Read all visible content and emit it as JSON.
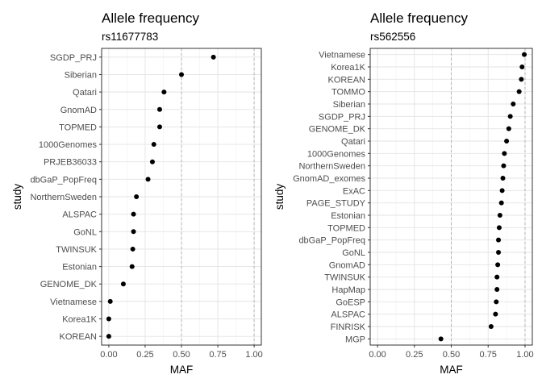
{
  "chart_data": [
    {
      "type": "scatter",
      "title": "Allele frequency",
      "subtitle": "rs11677783",
      "xlabel": "MAF",
      "ylabel": "study",
      "xlim": [
        0,
        1
      ],
      "xticks": [
        "0.00",
        "0.25",
        "0.50",
        "0.75",
        "1.00"
      ],
      "xtick_values": [
        0,
        0.25,
        0.5,
        0.75,
        1.0
      ],
      "reference_lines": [
        0.5,
        1.0
      ],
      "grid": true,
      "point_color": "#000000",
      "categories": [
        "SGDP_PRJ",
        "Siberian",
        "Qatari",
        "GnomAD",
        "TOPMED",
        "1000Genomes",
        "PRJEB36033",
        "dbGaP_PopFreq",
        "NorthernSweden",
        "ALSPAC",
        "GoNL",
        "TWINSUK",
        "Estonian",
        "GENOME_DK",
        "Vietnamese",
        "Korea1K",
        "KOREAN"
      ],
      "values": [
        0.72,
        0.5,
        0.38,
        0.35,
        0.35,
        0.31,
        0.3,
        0.27,
        0.19,
        0.17,
        0.17,
        0.165,
        0.16,
        0.1,
        0.01,
        0.0,
        0.0
      ]
    },
    {
      "type": "scatter",
      "title": "Allele frequency",
      "subtitle": "rs562556",
      "xlabel": "MAF",
      "ylabel": "study",
      "xlim": [
        0,
        1
      ],
      "xticks": [
        "0.00",
        "0.25",
        "0.50",
        "0.75",
        "1.00"
      ],
      "xtick_values": [
        0,
        0.25,
        0.5,
        0.75,
        1.0
      ],
      "reference_lines": [
        0.5,
        1.0
      ],
      "grid": true,
      "point_color": "#000000",
      "categories": [
        "Vietnamese",
        "Korea1K",
        "KOREAN",
        "TOMMO",
        "Siberian",
        "SGDP_PRJ",
        "GENOME_DK",
        "Qatari",
        "1000Genomes",
        "NorthernSweden",
        "GnomAD_exomes",
        "ExAC",
        "PAGE_STUDY",
        "Estonian",
        "TOPMED",
        "dbGaP_PopFreq",
        "GoNL",
        "GnomAD",
        "TWINSUK",
        "HapMap",
        "GoESP",
        "ALSPAC",
        "FINRISK",
        "MGP"
      ],
      "values": [
        0.995,
        0.98,
        0.975,
        0.96,
        0.92,
        0.9,
        0.89,
        0.875,
        0.86,
        0.855,
        0.85,
        0.845,
        0.84,
        0.83,
        0.825,
        0.82,
        0.82,
        0.815,
        0.81,
        0.81,
        0.805,
        0.8,
        0.77,
        0.43
      ]
    }
  ]
}
